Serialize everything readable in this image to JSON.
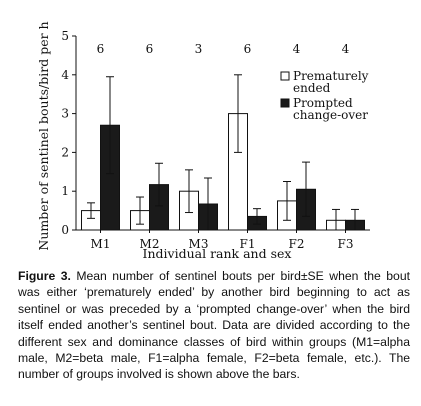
{
  "chart_data": {
    "type": "bar",
    "categories": [
      "M1",
      "M2",
      "M3",
      "F1",
      "F2",
      "F3"
    ],
    "group_counts": [
      "6",
      "6",
      "3",
      "6",
      "4",
      "4"
    ],
    "series": [
      {
        "name": "Prematurely ended",
        "color": "#ffffff",
        "values": [
          0.5,
          0.5,
          1.0,
          3.0,
          0.75,
          0.25
        ],
        "se": [
          0.2,
          0.35,
          0.55,
          1.0,
          0.5,
          0.28
        ]
      },
      {
        "name": "Prompted change-over",
        "color": "#1a1a1a",
        "values": [
          2.7,
          1.17,
          0.67,
          0.35,
          1.05,
          0.25
        ],
        "se": [
          1.25,
          0.55,
          0.67,
          0.2,
          0.7,
          0.28
        ]
      }
    ],
    "legend": [
      {
        "line1": "Prematurely",
        "line2": "ended"
      },
      {
        "line1": "Prompted",
        "line2": "change-over"
      }
    ],
    "xlabel": "Individual rank and sex",
    "ylabel": "Number of sentinel bouts/bird per h",
    "ylim": [
      0,
      5
    ],
    "yticks": [
      "0",
      "1",
      "2",
      "3",
      "4",
      "5"
    ],
    "legend_position": "top-right",
    "grid": false
  },
  "caption": {
    "label": "Figure 3.",
    "text": "Mean number of sentinel bouts per bird±SE when the bout was either ‘prematurely ended’ by another bird beginning to act as sentinel or was preceded by a ‘prompted change-over’ when the bird itself ended another’s sentinel bout. Data are divided according to the different sex and dominance classes of bird within groups (M1=alpha male, M2=beta male, F1=alpha female, F2=beta female, etc.). The number of groups involved is shown above the bars."
  }
}
